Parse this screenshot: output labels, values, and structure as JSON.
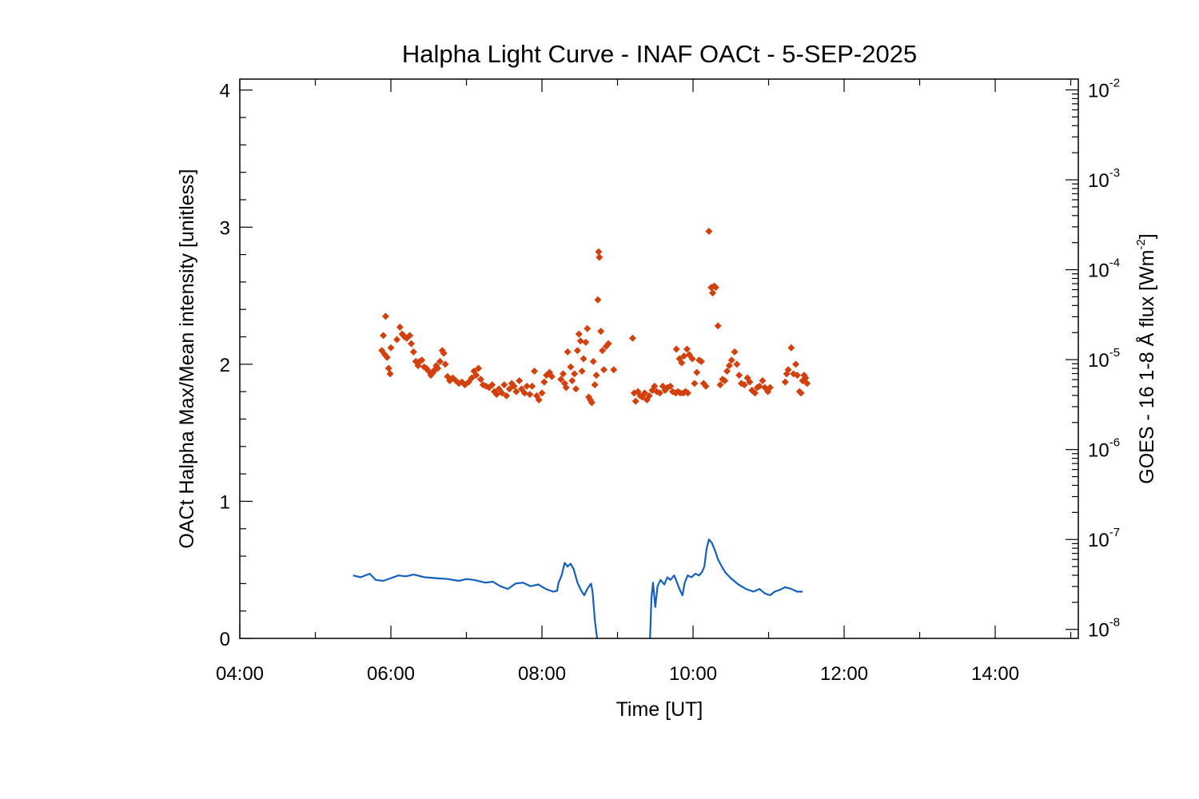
{
  "chart_data": {
    "type": "scatter",
    "title": "Halpha Light Curve - INAF OACt -  5-SEP-2025",
    "xlabel": "Time [UT]",
    "ylabel_left": "OACt Halpha Max/Mean intensity [unitless]",
    "ylabel_right": {
      "text": "GOES - 16 1-8 Å flux [Wm",
      "sup": "-2",
      "close": "]"
    },
    "x_ticks": [
      {
        "hour": 4,
        "label": "04:00"
      },
      {
        "hour": 6,
        "label": "06:00"
      },
      {
        "hour": 8,
        "label": "08:00"
      },
      {
        "hour": 10,
        "label": "10:00"
      },
      {
        "hour": 12,
        "label": "12:00"
      },
      {
        "hour": 14,
        "label": "14:00"
      }
    ],
    "xlim_hours": [
      4,
      15.1
    ],
    "y_left_ticks": [
      {
        "value": 0,
        "label": "0"
      },
      {
        "value": 1,
        "label": "1"
      },
      {
        "value": 2,
        "label": "2"
      },
      {
        "value": 3,
        "label": "3"
      },
      {
        "value": 4,
        "label": "4"
      }
    ],
    "ylim_left": [
      0,
      4.08
    ],
    "y_right_ticks": [
      {
        "exp": -8,
        "base": "10",
        "sup": "-8"
      },
      {
        "exp": -7,
        "base": "10",
        "sup": "-7"
      },
      {
        "exp": -6,
        "base": "10",
        "sup": "-6"
      },
      {
        "exp": -5,
        "base": "10",
        "sup": "-5"
      },
      {
        "exp": -4,
        "base": "10",
        "sup": "-4"
      },
      {
        "exp": -3,
        "base": "10",
        "sup": "-3"
      },
      {
        "exp": -2,
        "base": "10",
        "sup": "-2"
      }
    ],
    "ylim_right_log10": [
      -8.1,
      -1.88
    ],
    "right_axis_scale": "log",
    "grid": false,
    "colors": {
      "halpha": "#d2400e",
      "goes": "#1560bd",
      "axes": "#000000"
    },
    "series": [
      {
        "type": "scatter",
        "axis": "left",
        "marker": "diamond",
        "points": [
          [
            5.93,
            2.35
          ],
          [
            5.9,
            2.21
          ],
          [
            5.88,
            2.1
          ],
          [
            5.92,
            2.07
          ],
          [
            5.95,
            2.05
          ],
          [
            5.97,
            1.97
          ],
          [
            5.99,
            1.93
          ],
          [
            6.0,
            2.12
          ],
          [
            6.08,
            2.18
          ],
          [
            6.12,
            2.27
          ],
          [
            6.15,
            2.22
          ],
          [
            6.18,
            2.2
          ],
          [
            6.21,
            2.19
          ],
          [
            6.25,
            2.21
          ],
          [
            6.27,
            2.15
          ],
          [
            6.3,
            2.09
          ],
          [
            6.33,
            2.02
          ],
          [
            6.36,
            1.99
          ],
          [
            6.38,
            2.02
          ],
          [
            6.41,
            2.03
          ],
          [
            6.44,
            1.98
          ],
          [
            6.47,
            1.97
          ],
          [
            6.5,
            1.95
          ],
          [
            6.53,
            1.92
          ],
          [
            6.56,
            1.94
          ],
          [
            6.58,
            1.96
          ],
          [
            6.6,
            1.99
          ],
          [
            6.62,
            1.97
          ],
          [
            6.65,
            2.02
          ],
          [
            6.68,
            2.1
          ],
          [
            6.7,
            2.08
          ],
          [
            6.72,
            2.0
          ],
          [
            6.75,
            1.91
          ],
          [
            6.78,
            1.88
          ],
          [
            6.82,
            1.9
          ],
          [
            6.86,
            1.88
          ],
          [
            6.9,
            1.86
          ],
          [
            6.94,
            1.87
          ],
          [
            6.98,
            1.85
          ],
          [
            7.03,
            1.87
          ],
          [
            7.07,
            1.9
          ],
          [
            7.1,
            1.95
          ],
          [
            7.13,
            1.92
          ],
          [
            7.16,
            1.97
          ],
          [
            7.19,
            1.89
          ],
          [
            7.22,
            1.85
          ],
          [
            7.26,
            1.84
          ],
          [
            7.3,
            1.83
          ],
          [
            7.34,
            1.85
          ],
          [
            7.37,
            1.8
          ],
          [
            7.4,
            1.78
          ],
          [
            7.43,
            1.82
          ],
          [
            7.47,
            1.79
          ],
          [
            7.5,
            1.85
          ],
          [
            7.53,
            1.77
          ],
          [
            7.57,
            1.82
          ],
          [
            7.6,
            1.86
          ],
          [
            7.63,
            1.84
          ],
          [
            7.66,
            1.8
          ],
          [
            7.7,
            1.88
          ],
          [
            7.73,
            1.82
          ],
          [
            7.77,
            1.79
          ],
          [
            7.8,
            1.84
          ],
          [
            7.84,
            1.78
          ],
          [
            7.87,
            1.84
          ],
          [
            7.9,
            1.95
          ],
          [
            7.93,
            1.77
          ],
          [
            7.96,
            1.74
          ],
          [
            8.0,
            1.79
          ],
          [
            8.03,
            1.87
          ],
          [
            8.06,
            1.92
          ],
          [
            8.1,
            1.94
          ],
          [
            8.13,
            1.91
          ],
          [
            8.25,
            1.89
          ],
          [
            8.28,
            1.93
          ],
          [
            8.3,
            1.86
          ],
          [
            8.32,
            1.83
          ],
          [
            8.34,
            2.09
          ],
          [
            8.38,
            1.98
          ],
          [
            8.4,
            1.88
          ],
          [
            8.43,
            1.93
          ],
          [
            8.45,
            1.82
          ],
          [
            8.47,
            2.1
          ],
          [
            8.49,
            2.22
          ],
          [
            8.51,
            2.17
          ],
          [
            8.53,
            1.95
          ],
          [
            8.55,
            2.04
          ],
          [
            8.58,
            2.16
          ],
          [
            8.6,
            2.26
          ],
          [
            8.62,
            1.76
          ],
          [
            8.64,
            1.74
          ],
          [
            8.66,
            1.72
          ],
          [
            8.68,
            2.02
          ],
          [
            8.7,
            1.85
          ],
          [
            8.72,
            1.92
          ],
          [
            8.74,
            2.47
          ],
          [
            8.75,
            2.82
          ],
          [
            8.76,
            2.78
          ],
          [
            8.78,
            2.24
          ],
          [
            8.8,
            2.1
          ],
          [
            8.82,
            1.96
          ],
          [
            8.85,
            2.13
          ],
          [
            8.88,
            2.15
          ],
          [
            8.95,
            1.96
          ],
          [
            9.2,
            2.19
          ],
          [
            9.22,
            1.79
          ],
          [
            9.24,
            1.73
          ],
          [
            9.27,
            1.8
          ],
          [
            9.3,
            1.77
          ],
          [
            9.33,
            1.76
          ],
          [
            9.36,
            1.79
          ],
          [
            9.39,
            1.74
          ],
          [
            9.42,
            1.77
          ],
          [
            9.46,
            1.81
          ],
          [
            9.49,
            1.84
          ],
          [
            9.52,
            1.8
          ],
          [
            9.56,
            1.79
          ],
          [
            9.6,
            1.84
          ],
          [
            9.63,
            1.81
          ],
          [
            9.66,
            1.83
          ],
          [
            9.7,
            1.84
          ],
          [
            9.73,
            1.8
          ],
          [
            9.77,
            1.79
          ],
          [
            9.8,
            1.8
          ],
          [
            9.83,
            1.79
          ],
          [
            9.87,
            1.79
          ],
          [
            9.9,
            1.8
          ],
          [
            9.93,
            1.79
          ],
          [
            9.78,
            2.11
          ],
          [
            9.82,
            2.04
          ],
          [
            9.85,
            2.01
          ],
          [
            9.88,
            2.06
          ],
          [
            9.92,
            2.11
          ],
          [
            9.95,
            2.07
          ],
          [
            9.99,
            2.04
          ],
          [
            10.02,
            1.86
          ],
          [
            10.05,
            1.94
          ],
          [
            10.08,
            2.03
          ],
          [
            10.11,
            2.02
          ],
          [
            10.14,
            1.86
          ],
          [
            10.17,
            1.84
          ],
          [
            10.21,
            2.97
          ],
          [
            10.24,
            2.56
          ],
          [
            10.26,
            2.52
          ],
          [
            10.28,
            2.57
          ],
          [
            10.3,
            2.56
          ],
          [
            10.33,
            2.28
          ],
          [
            10.36,
            1.85
          ],
          [
            10.39,
            1.89
          ],
          [
            10.42,
            1.88
          ],
          [
            10.45,
            1.95
          ],
          [
            10.48,
            1.99
          ],
          [
            10.51,
            2.03
          ],
          [
            10.55,
            2.09
          ],
          [
            10.58,
            2.0
          ],
          [
            10.61,
            1.92
          ],
          [
            10.64,
            1.86
          ],
          [
            10.68,
            1.85
          ],
          [
            10.72,
            1.9
          ],
          [
            10.75,
            1.87
          ],
          [
            10.78,
            1.81
          ],
          [
            10.82,
            1.79
          ],
          [
            10.85,
            1.83
          ],
          [
            10.88,
            1.84
          ],
          [
            10.92,
            1.88
          ],
          [
            10.95,
            1.83
          ],
          [
            10.99,
            1.8
          ],
          [
            11.02,
            1.83
          ],
          [
            11.22,
            1.87
          ],
          [
            11.24,
            1.93
          ],
          [
            11.26,
            1.96
          ],
          [
            11.3,
            2.12
          ],
          [
            11.33,
            1.93
          ],
          [
            11.36,
            2.0
          ],
          [
            11.38,
            1.92
          ],
          [
            11.41,
            1.8
          ],
          [
            11.43,
            1.79
          ],
          [
            11.45,
            1.88
          ],
          [
            11.47,
            1.92
          ],
          [
            11.49,
            1.9
          ],
          [
            11.51,
            1.86
          ]
        ]
      },
      {
        "type": "line",
        "axis": "right",
        "segments": [
          [
            [
              5.5,
              -7.4
            ],
            [
              5.6,
              -7.42
            ],
            [
              5.72,
              -7.38
            ],
            [
              5.8,
              -7.45
            ],
            [
              5.9,
              -7.46
            ],
            [
              6.0,
              -7.43
            ],
            [
              6.1,
              -7.4
            ],
            [
              6.2,
              -7.41
            ],
            [
              6.3,
              -7.39
            ],
            [
              6.45,
              -7.42
            ],
            [
              6.6,
              -7.43
            ],
            [
              6.75,
              -7.44
            ],
            [
              6.9,
              -7.46
            ],
            [
              7.0,
              -7.44
            ],
            [
              7.1,
              -7.45
            ],
            [
              7.25,
              -7.48
            ],
            [
              7.35,
              -7.47
            ],
            [
              7.45,
              -7.52
            ],
            [
              7.55,
              -7.55
            ],
            [
              7.65,
              -7.49
            ],
            [
              7.75,
              -7.48
            ],
            [
              7.85,
              -7.52
            ],
            [
              7.95,
              -7.5
            ],
            [
              8.05,
              -7.55
            ],
            [
              8.15,
              -7.58
            ],
            [
              8.2,
              -7.57
            ],
            [
              8.22,
              -7.48
            ],
            [
              8.26,
              -7.4
            ],
            [
              8.3,
              -7.26
            ],
            [
              8.34,
              -7.3
            ],
            [
              8.38,
              -7.27
            ],
            [
              8.42,
              -7.33
            ],
            [
              8.47,
              -7.48
            ],
            [
              8.52,
              -7.57
            ],
            [
              8.56,
              -7.62
            ],
            [
              8.6,
              -7.55
            ],
            [
              8.65,
              -7.49
            ],
            [
              8.67,
              -7.58
            ],
            [
              8.7,
              -7.9
            ],
            [
              8.73,
              -8.1
            ]
          ],
          [
            [
              9.43,
              -8.1
            ],
            [
              9.45,
              -7.65
            ],
            [
              9.47,
              -7.48
            ],
            [
              9.5,
              -7.75
            ],
            [
              9.53,
              -7.52
            ],
            [
              9.57,
              -7.45
            ],
            [
              9.62,
              -7.5
            ],
            [
              9.66,
              -7.42
            ],
            [
              9.7,
              -7.45
            ],
            [
              9.75,
              -7.4
            ],
            [
              9.78,
              -7.46
            ],
            [
              9.82,
              -7.55
            ],
            [
              9.86,
              -7.62
            ],
            [
              9.89,
              -7.48
            ],
            [
              9.93,
              -7.4
            ],
            [
              9.98,
              -7.42
            ],
            [
              10.03,
              -7.38
            ],
            [
              10.08,
              -7.4
            ],
            [
              10.12,
              -7.36
            ],
            [
              10.15,
              -7.3
            ],
            [
              10.18,
              -7.1
            ],
            [
              10.21,
              -7.0
            ],
            [
              10.25,
              -7.04
            ],
            [
              10.29,
              -7.12
            ],
            [
              10.33,
              -7.22
            ],
            [
              10.38,
              -7.3
            ],
            [
              10.43,
              -7.37
            ],
            [
              10.5,
              -7.43
            ],
            [
              10.6,
              -7.5
            ],
            [
              10.7,
              -7.55
            ],
            [
              10.8,
              -7.58
            ],
            [
              10.88,
              -7.55
            ],
            [
              10.95,
              -7.6
            ],
            [
              11.02,
              -7.62
            ],
            [
              11.08,
              -7.58
            ],
            [
              11.15,
              -7.56
            ],
            [
              11.22,
              -7.53
            ],
            [
              11.3,
              -7.55
            ],
            [
              11.38,
              -7.58
            ],
            [
              11.45,
              -7.58
            ]
          ]
        ]
      }
    ]
  }
}
